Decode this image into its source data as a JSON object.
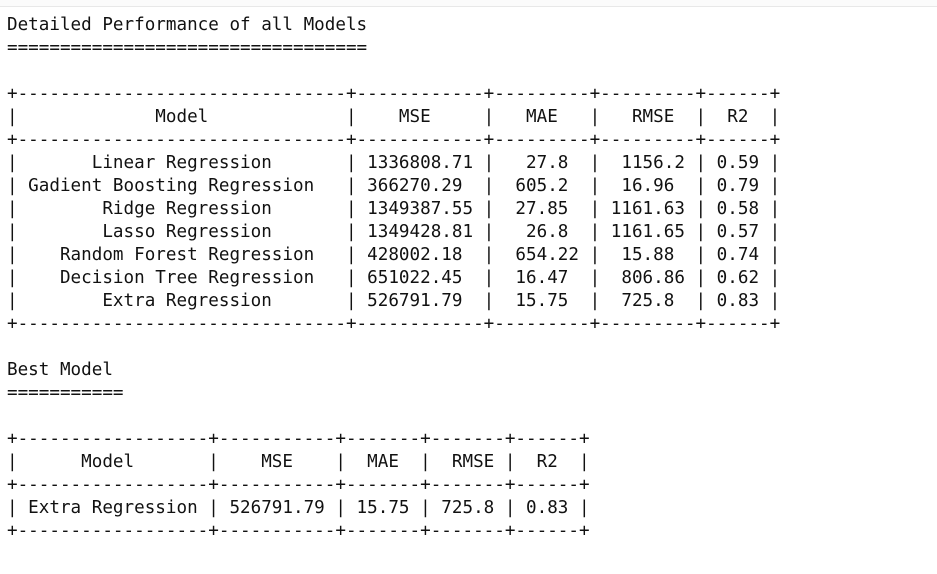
{
  "output_lines": [
    "Detailed Performance of all Models",
    "==================================",
    "",
    "+-------------------------------+------------+---------+---------+------+",
    "|             Model             |    MSE     |   MAE   |   RMSE  |  R2  |",
    "+-------------------------------+------------+---------+---------+------+",
    "|       Linear Regression       | 1336808.71 |   27.8  |  1156.2 | 0.59 |",
    "| Gadient Boosting Regression   | 366270.29  |  605.2  |  16.96  | 0.79 |",
    "|        Ridge Regression       | 1349387.55 |  27.85  | 1161.63 | 0.58 |",
    "|        Lasso Regression       | 1349428.81 |   26.8  | 1161.65 | 0.57 |",
    "|    Random Forest Regression   | 428002.18  |  654.22 |  15.88  | 0.74 |",
    "|    Decision Tree Regression   | 651022.45  |  16.47  |  806.86 | 0.62 |",
    "|        Extra Regression       | 526791.79  |  15.75  |  725.8  | 0.83 |",
    "+-------------------------------+------------+---------+---------+------+",
    "",
    "Best Model",
    "===========",
    "",
    "+------------------+-----------+-------+-------+------+",
    "|      Model       |    MSE    |  MAE  |  RMSE |  R2  |",
    "+------------------+-----------+-------+-------+------+",
    "| Extra Regression | 526791.79 | 15.75 | 725.8 | 0.83 |",
    "+------------------+-----------+-------+-------+------+"
  ]
}
